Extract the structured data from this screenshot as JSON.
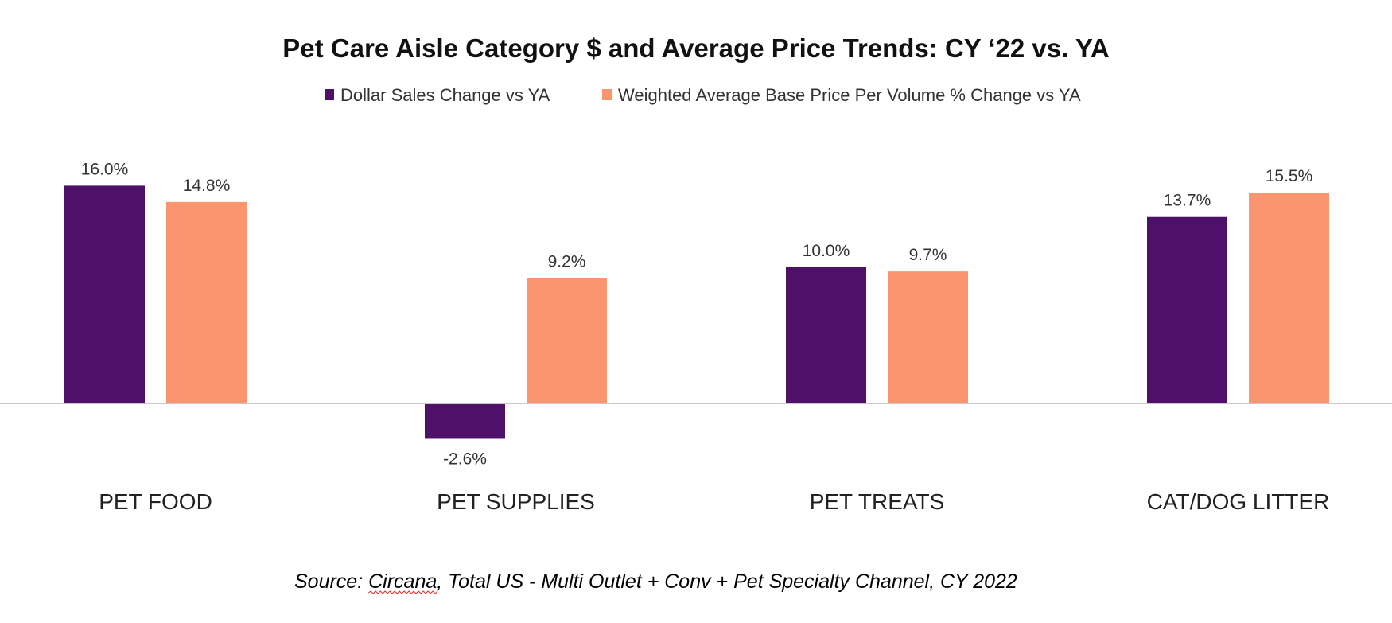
{
  "chart_data": {
    "type": "bar",
    "title": "Pet Care Aisle Category $ and Average Price Trends: CY ‘22 vs. YA",
    "categories": [
      "PET FOOD",
      "PET SUPPLIES",
      "PET TREATS",
      "CAT/DOG LITTER"
    ],
    "series": [
      {
        "name": "Dollar Sales Change vs YA",
        "color": "#4e1068",
        "values": [
          16.0,
          -2.6,
          10.0,
          13.7
        ],
        "labels": [
          "16.0%",
          "-2.6%",
          "10.0%",
          "13.7%"
        ]
      },
      {
        "name": "Weighted Average Base Price Per Volume % Change vs YA",
        "color": "#fb9570",
        "values": [
          14.8,
          9.2,
          9.7,
          15.5
        ],
        "labels": [
          "14.8%",
          "9.2%",
          "9.7%",
          "15.5%"
        ]
      }
    ],
    "xlabel": "",
    "ylabel": "",
    "ylim": [
      -4,
      18
    ],
    "grid": false,
    "legend_position": "top-center",
    "baseline_color": "#c8c8c8"
  },
  "footer": {
    "source_prefix": "Source: ",
    "source_link": "Circana",
    "source_rest": ", Total US - Multi Outlet + Conv + Pet Specialty Channel, CY 2022"
  }
}
